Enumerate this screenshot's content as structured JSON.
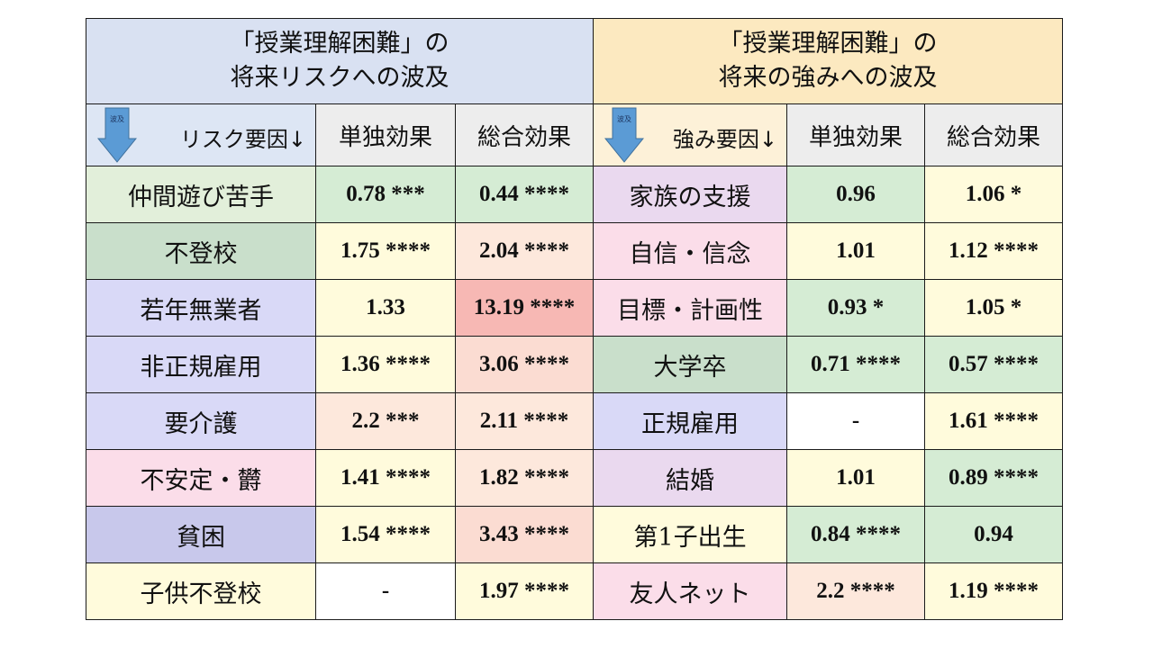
{
  "left_title": [
    "「授業理解困難」の",
    "将来リスクへの波及"
  ],
  "right_title": [
    "「授業理解困難」の",
    "将来の強みへの波及"
  ],
  "headers": {
    "arrow_text": "波及",
    "left_factor": "リスク要因↓",
    "right_factor": "強み要因↓",
    "single": "単独効果",
    "total": "総合効果"
  },
  "colors": {
    "left_title_bg": "#d9e1f2",
    "right_title_bg": "#fce9c0",
    "arrow_fill": "#5b9bd5",
    "green": "#d5ecd4",
    "yellow": "#fffbdc",
    "peach": "#fde8dc",
    "pink_salmon": "#fbdcd2",
    "red": "#f7b8b4",
    "white": "#ffffff"
  },
  "left_rows": [
    {
      "factor": "仲間遊び苦手",
      "single": "0.78 ***",
      "total": "0.44 ****"
    },
    {
      "factor": "不登校",
      "single": "1.75 ****",
      "total": "2.04 ****"
    },
    {
      "factor": "若年無業者",
      "single": "1.33",
      "total": "13.19 ****"
    },
    {
      "factor": "非正規雇用",
      "single": "1.36 ****",
      "total": "3.06 ****"
    },
    {
      "factor": "要介護",
      "single": "2.2 ***",
      "total": "2.11 ****"
    },
    {
      "factor": "不安定・欝",
      "single": "1.41 ****",
      "total": "1.82 ****"
    },
    {
      "factor": "貧困",
      "single": "1.54 ****",
      "total": "3.43 ****"
    },
    {
      "factor": "子供不登校",
      "single": "-",
      "total": "1.97 ****"
    }
  ],
  "right_rows": [
    {
      "factor": "家族の支援",
      "single": "0.96",
      "total": "1.06 *"
    },
    {
      "factor": "自信・信念",
      "single": "1.01",
      "total": "1.12 ****"
    },
    {
      "factor": "目標・計画性",
      "single": "0.93 *",
      "total": "1.05 *"
    },
    {
      "factor": "大学卒",
      "single": "0.71 ****",
      "total": "0.57 ****"
    },
    {
      "factor": "正規雇用",
      "single": "-",
      "total": "1.61 ****"
    },
    {
      "factor": "結婚",
      "single": "1.01",
      "total": "0.89 ****"
    },
    {
      "factor": "第1子出生",
      "single": "0.84 ****",
      "total": "0.94"
    },
    {
      "factor": "友人ネット",
      "single": "2.2 ****",
      "total": "1.19 ****"
    }
  ]
}
